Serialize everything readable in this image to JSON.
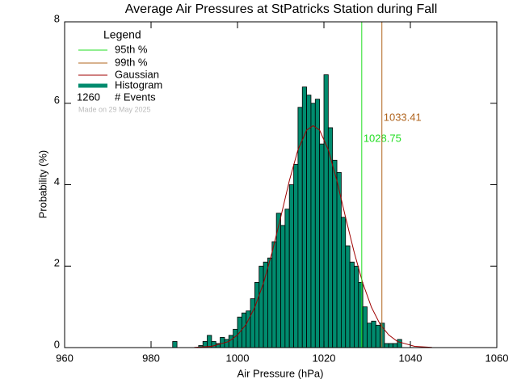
{
  "chart_data": {
    "type": "histogram",
    "title": "Average Air Pressures at StPatricks Station during Fall",
    "x_label": "Air Pressure (hPa)",
    "y_label": "Probability (%)",
    "legend_title": "Legend",
    "name": "Histogram",
    "color": "#008b6e",
    "bins": [
      985,
      986,
      987,
      988,
      989,
      990,
      991,
      992,
      993,
      994,
      995,
      996,
      997,
      998,
      999,
      1000,
      1001,
      1002,
      1003,
      1004,
      1005,
      1006,
      1007,
      1008,
      1009,
      1010,
      1011,
      1012,
      1013,
      1014,
      1015,
      1016,
      1017,
      1018,
      1019,
      1020,
      1021,
      1022,
      1023,
      1024,
      1025,
      1026,
      1027,
      1028,
      1029,
      1030,
      1031,
      1032,
      1033,
      1034,
      1035,
      1036,
      1037,
      1038
    ],
    "counts": [
      0.15,
      0,
      0,
      0,
      0,
      0,
      0.05,
      0.15,
      0.3,
      0.15,
      0.1,
      0.25,
      0.2,
      0.3,
      0.45,
      0.75,
      0.85,
      0.9,
      1.2,
      1.6,
      2.0,
      2.1,
      2.2,
      2.6,
      3.3,
      3.0,
      3.4,
      4.0,
      4.5,
      5.9,
      6.4,
      6.2,
      6.0,
      6.1,
      5.0,
      6.7,
      5.4,
      4.6,
      4.3,
      3.2,
      2.5,
      2.1,
      2.0,
      1.6,
      1.0,
      0.6,
      0.65,
      0.55,
      0.6,
      0.1,
      0.1,
      0.1,
      0.2
    ],
    "gaussian": {
      "name": "Gaussian",
      "color": "#a00000",
      "x": [
        990,
        994,
        998,
        1000,
        1002,
        1004,
        1006,
        1008,
        1010,
        1012,
        1014,
        1016,
        1017.5,
        1019,
        1021,
        1023,
        1025,
        1027,
        1029,
        1031,
        1033,
        1035,
        1037,
        1041,
        1045
      ],
      "values": [
        0.005,
        0.03,
        0.15,
        0.31,
        0.57,
        0.99,
        1.58,
        2.34,
        3.2,
        4.1,
        4.86,
        5.34,
        5.45,
        5.34,
        4.86,
        4.1,
        3.2,
        2.34,
        1.58,
        0.99,
        0.57,
        0.31,
        0.15,
        0.03,
        0.005
      ]
    },
    "percentiles": [
      {
        "name": "95th %",
        "color": "#22dd22",
        "value": 1028.75
      },
      {
        "name": "99th %",
        "color": "#b0641e",
        "value": 1033.41
      }
    ],
    "events": {
      "value": 1260,
      "label": "# Events"
    },
    "note": "Made on 29 May 2025",
    "xlim": [
      960,
      1060
    ],
    "ylim": [
      0,
      8
    ],
    "xticks": [
      960,
      980,
      1000,
      1020,
      1040,
      1060
    ],
    "yticks": [
      0,
      2,
      4,
      6,
      8
    ]
  }
}
